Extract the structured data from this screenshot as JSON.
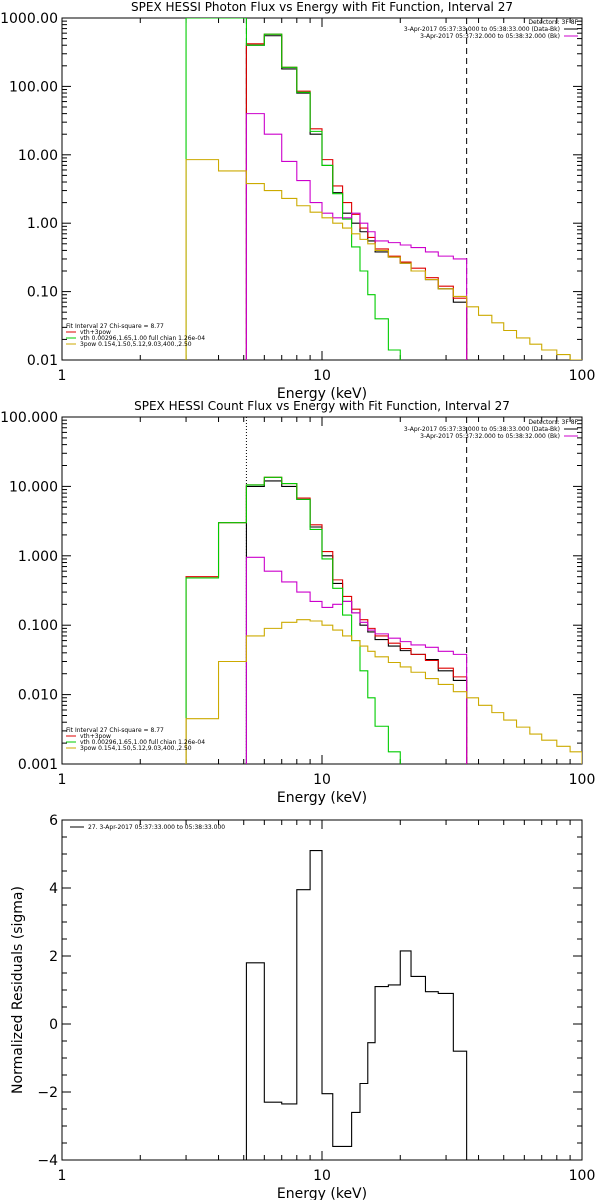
{
  "chart_data": [
    {
      "type": "line",
      "title": "SPEX HESSI Photon Flux vs Energy with Fit Function, Interval 27",
      "xlabel": "Energy (keV)",
      "ylabel": "",
      "xscale": "log",
      "yscale": "log",
      "xlim": [
        1,
        100
      ],
      "ylim": [
        0.01,
        1000
      ],
      "xticks": [
        {
          "v": 1,
          "t": "1"
        },
        {
          "v": 10,
          "t": "10"
        },
        {
          "v": 100,
          "t": "100"
        }
      ],
      "yticks": [
        {
          "v": 1000,
          "t": "1000.00"
        },
        {
          "v": 100,
          "t": "100.00"
        },
        {
          "v": 10,
          "t": "10.00"
        },
        {
          "v": 1,
          "t": "1.00"
        },
        {
          "v": 0.1,
          "t": "0.10"
        },
        {
          "v": 0.01,
          "t": "0.01"
        }
      ],
      "legend_top": {
        "heading": "Detectors: 3F 8F",
        "entries": [
          {
            "label": "3-Apr-2017 05:37:33.000 to 05:38:33.000 (Data-Bk)",
            "color": "#000000"
          },
          {
            "label": "3-Apr-2017 05:37:32.000 to 05:38:32.000 (Bk)",
            "color": "#cc00cc"
          }
        ]
      },
      "legend_bottom": {
        "heading": "Fit Interval 27   Chi-square = 8.77",
        "entries": [
          {
            "label": "vth+3pow",
            "color": "#dd0000"
          },
          {
            "label": "vth 0.00296,1.65,1.00  full chian 1.26e-04",
            "color": "#00cc00"
          },
          {
            "label": "3pow 0.154,1.50,5.12,9.03,400.,2.50",
            "color": "#ccaa00"
          }
        ]
      },
      "vlines": [
        {
          "x": 5.12,
          "style": "dashed",
          "color": "#000000"
        },
        {
          "x": 36,
          "style": "dashed",
          "color": "#000000"
        }
      ],
      "series": [
        {
          "name": "Data-Bk",
          "color": "#000000",
          "edges": [
            5.12,
            6,
            7,
            8,
            9,
            10,
            11,
            12,
            13,
            14,
            15,
            16,
            18,
            20,
            22,
            25,
            28,
            32,
            36
          ],
          "values": [
            400,
            550,
            180,
            80,
            20,
            7,
            2.8,
            1.4,
            1.0,
            0.75,
            0.55,
            0.38,
            0.32,
            0.26,
            0.2,
            0.15,
            0.11,
            0.07
          ]
        },
        {
          "name": "vth+3pow",
          "color": "#dd0000",
          "edges": [
            5.12,
            6,
            7,
            8,
            9,
            10,
            11,
            12,
            13,
            14,
            15,
            16,
            18,
            20,
            22,
            25,
            28,
            32,
            36
          ],
          "values": [
            420,
            580,
            190,
            85,
            24,
            8.5,
            3.5,
            2.0,
            1.35,
            0.85,
            0.62,
            0.42,
            0.33,
            0.27,
            0.22,
            0.16,
            0.12,
            0.08
          ]
        },
        {
          "name": "Bk",
          "color": "#cc00cc",
          "edges": [
            5.12,
            6,
            7,
            8,
            9,
            10,
            11,
            12,
            13,
            14,
            15,
            16,
            18,
            20,
            22,
            25,
            28,
            32,
            36
          ],
          "values": [
            40,
            20,
            8,
            4.2,
            2.0,
            1.4,
            1.2,
            1.2,
            1.4,
            1.0,
            0.75,
            0.55,
            0.52,
            0.48,
            0.44,
            0.38,
            0.33,
            0.3
          ]
        },
        {
          "name": "vth",
          "color": "#00cc00",
          "edges": [
            3,
            4,
            5.12,
            6,
            7,
            8,
            9,
            10,
            11,
            12,
            13,
            14,
            15,
            16,
            18,
            20
          ],
          "values": [
            1000,
            1000,
            400,
            580,
            190,
            82,
            22,
            7,
            2.7,
            1.15,
            0.45,
            0.2,
            0.09,
            0.04,
            0.014
          ]
        },
        {
          "name": "3pow",
          "color": "#ccaa00",
          "edges": [
            3,
            4,
            5.12,
            6,
            7,
            8,
            9,
            10,
            11,
            12,
            13,
            14,
            15,
            16,
            18,
            20,
            22,
            25,
            28,
            32,
            36,
            40,
            45,
            50,
            56,
            63,
            70,
            80,
            90,
            100
          ],
          "values": [
            8.5,
            5.8,
            3.8,
            3.0,
            2.3,
            1.8,
            1.45,
            1.2,
            1.0,
            0.85,
            0.7,
            0.58,
            0.5,
            0.4,
            0.32,
            0.26,
            0.2,
            0.15,
            0.11,
            0.085,
            0.06,
            0.045,
            0.035,
            0.027,
            0.021,
            0.017,
            0.014,
            0.012,
            0.01
          ]
        }
      ]
    },
    {
      "type": "line",
      "title": "SPEX HESSI Count Flux vs Energy with Fit Function, Interval 27",
      "xlabel": "Energy (keV)",
      "ylabel": "",
      "xscale": "log",
      "yscale": "log",
      "xlim": [
        1,
        100
      ],
      "ylim": [
        0.001,
        100
      ],
      "xticks": [
        {
          "v": 1,
          "t": "1"
        },
        {
          "v": 10,
          "t": "10"
        },
        {
          "v": 100,
          "t": "100"
        }
      ],
      "yticks": [
        {
          "v": 100,
          "t": "100.000"
        },
        {
          "v": 10,
          "t": "10.000"
        },
        {
          "v": 1,
          "t": "1.000"
        },
        {
          "v": 0.1,
          "t": "0.100"
        },
        {
          "v": 0.01,
          "t": "0.010"
        },
        {
          "v": 0.001,
          "t": "0.001"
        }
      ],
      "legend_top": {
        "heading": "Detectors: 3F 8F",
        "entries": [
          {
            "label": "3-Apr-2017 05:37:33.000 to 05:38:33.000 (Data-Bk)",
            "color": "#000000"
          },
          {
            "label": "3-Apr-2017 05:37:32.000 to 05:38:32.000 (Bk)",
            "color": "#cc00cc"
          }
        ]
      },
      "legend_bottom": {
        "heading": "Fit Interval 27   Chi-square = 8.77",
        "entries": [
          {
            "label": "vth+3pow",
            "color": "#dd0000"
          },
          {
            "label": "vth 0.00296,1.65,1.00  full chian 1.26e-04",
            "color": "#00cc00"
          },
          {
            "label": "3pow 0.154,1.50,5.12,9.03,400.,2.50",
            "color": "#ccaa00"
          }
        ]
      },
      "vlines": [
        {
          "x": 5.12,
          "style": "dotted",
          "color": "#000000"
        },
        {
          "x": 36,
          "style": "dashed",
          "color": "#000000"
        }
      ],
      "series": [
        {
          "name": "Data-Bk",
          "color": "#000000",
          "edges": [
            5.12,
            6,
            7,
            8,
            9,
            10,
            11,
            12,
            13,
            14,
            15,
            16,
            18,
            20,
            22,
            25,
            28,
            32,
            36
          ],
          "values": [
            10,
            12,
            10,
            6.5,
            2.6,
            1.0,
            0.4,
            0.22,
            0.15,
            0.1,
            0.08,
            0.062,
            0.05,
            0.043,
            0.038,
            0.032,
            0.022,
            0.016
          ]
        },
        {
          "name": "vth+3pow",
          "color": "#dd0000",
          "edges": [
            3,
            4,
            5.12,
            6,
            7,
            8,
            9,
            10,
            11,
            12,
            13,
            14,
            15,
            16,
            18,
            20,
            22,
            25,
            28,
            32,
            36
          ],
          "values": [
            0.5,
            3.0,
            10.5,
            13.5,
            11,
            6.8,
            2.8,
            1.15,
            0.45,
            0.26,
            0.17,
            0.12,
            0.09,
            0.07,
            0.055,
            0.046,
            0.038,
            0.031,
            0.024,
            0.018
          ]
        },
        {
          "name": "Bk",
          "color": "#cc00cc",
          "edges": [
            5.12,
            6,
            7,
            8,
            9,
            10,
            11,
            12,
            13,
            14,
            15,
            16,
            18,
            20,
            22,
            25,
            28,
            32,
            36
          ],
          "values": [
            0.95,
            0.6,
            0.42,
            0.3,
            0.22,
            0.18,
            0.2,
            0.22,
            0.15,
            0.11,
            0.085,
            0.075,
            0.065,
            0.058,
            0.052,
            0.048,
            0.042,
            0.038
          ]
        },
        {
          "name": "vth",
          "color": "#00cc00",
          "edges": [
            3,
            4,
            5.12,
            6,
            7,
            8,
            9,
            10,
            11,
            12,
            13,
            14,
            15,
            16,
            18,
            20
          ],
          "values": [
            0.48,
            3.0,
            10.5,
            13.5,
            11,
            6.5,
            2.4,
            0.9,
            0.34,
            0.14,
            0.06,
            0.022,
            0.009,
            0.0035,
            0.0015
          ]
        },
        {
          "name": "3pow",
          "color": "#ccaa00",
          "edges": [
            3,
            4,
            5.12,
            6,
            7,
            8,
            9,
            10,
            11,
            12,
            13,
            14,
            15,
            16,
            18,
            20,
            22,
            25,
            28,
            32,
            36,
            40,
            45,
            50,
            56,
            63,
            70,
            80,
            90,
            100
          ],
          "values": [
            0.0045,
            0.03,
            0.07,
            0.09,
            0.11,
            0.12,
            0.115,
            0.1,
            0.085,
            0.07,
            0.06,
            0.05,
            0.042,
            0.035,
            0.029,
            0.025,
            0.021,
            0.017,
            0.014,
            0.011,
            0.009,
            0.007,
            0.0055,
            0.0043,
            0.0034,
            0.0027,
            0.0022,
            0.0018,
            0.0015
          ]
        }
      ]
    },
    {
      "type": "line",
      "title": "",
      "xlabel": "Energy (keV)",
      "ylabel": "Normalized Residuals (sigma)",
      "xscale": "log",
      "yscale": "linear",
      "xlim": [
        1,
        100
      ],
      "ylim": [
        -4,
        6
      ],
      "xticks": [
        {
          "v": 1,
          "t": "1"
        },
        {
          "v": 10,
          "t": "10"
        },
        {
          "v": 100,
          "t": "100"
        }
      ],
      "yticks": [
        {
          "v": 6,
          "t": "6"
        },
        {
          "v": 4,
          "t": "4"
        },
        {
          "v": 2,
          "t": "2"
        },
        {
          "v": 0,
          "t": "0"
        },
        {
          "v": -2,
          "t": "−2"
        },
        {
          "v": -4,
          "t": "−4"
        }
      ],
      "legend_top": {
        "heading": "",
        "entries": [
          {
            "label": "27.  3-Apr-2017 05:37:33.000 to 05:38:33.000",
            "color": "#000000"
          }
        ]
      },
      "vlines": [],
      "series": [
        {
          "name": "27.  3-Apr-2017 05:37:33.000 to 05:38:33.000",
          "color": "#000000",
          "edges": [
            5.12,
            6,
            7,
            8,
            9,
            10,
            11,
            12,
            13,
            14,
            15,
            16,
            18,
            20,
            22,
            25,
            28,
            32,
            36
          ],
          "values": [
            1.8,
            -2.3,
            -2.35,
            3.95,
            5.1,
            -2.05,
            -3.6,
            -3.6,
            -2.6,
            -1.75,
            -0.55,
            1.1,
            1.15,
            2.15,
            1.4,
            0.95,
            0.9,
            -0.8
          ]
        }
      ]
    }
  ]
}
